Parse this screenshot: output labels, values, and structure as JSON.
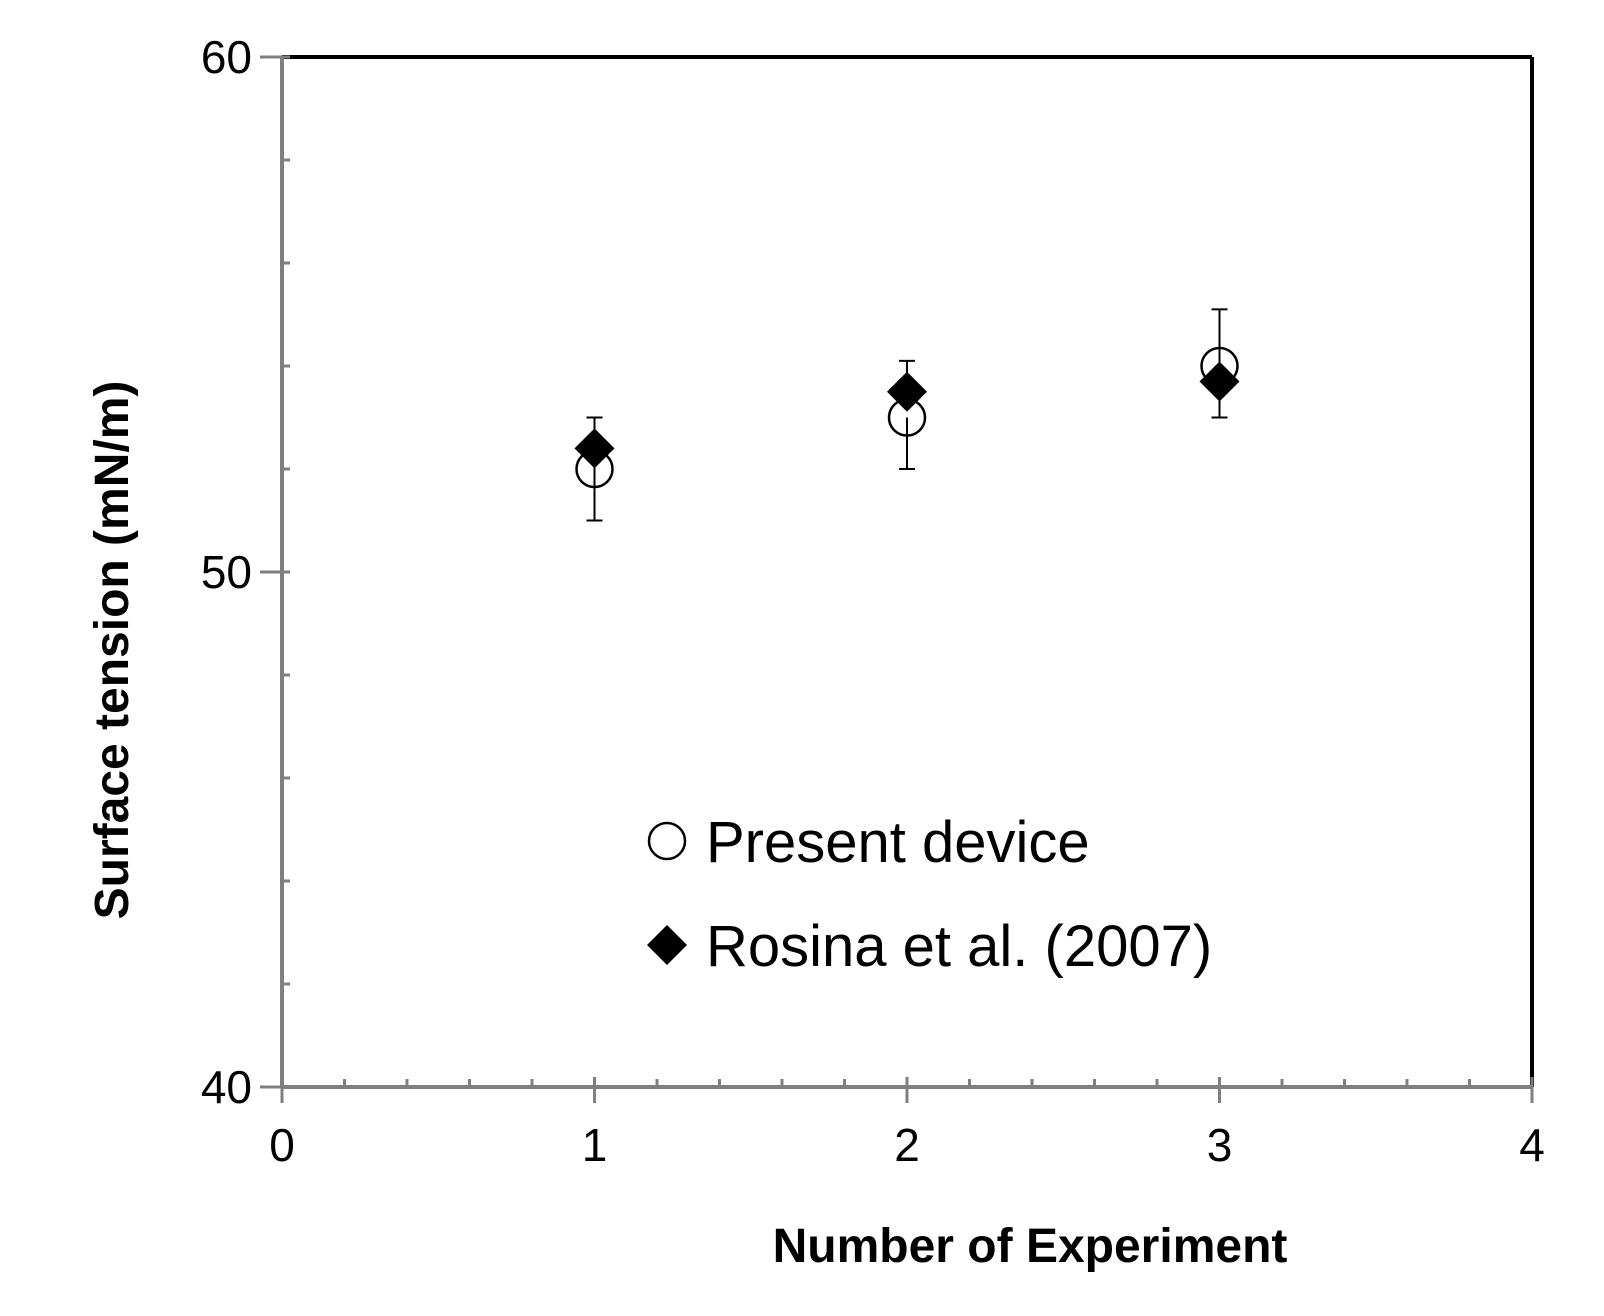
{
  "chart_data": {
    "type": "scatter",
    "title": "",
    "xlabel": "Number of Experiment",
    "ylabel": "Surface tension (mN/m)",
    "xlim": [
      0,
      4
    ],
    "ylim": [
      40,
      60
    ],
    "x_ticks": [
      0,
      1,
      2,
      3,
      4
    ],
    "y_ticks": [
      40,
      50,
      60
    ],
    "x_tick_labels": [
      "0",
      "1",
      "2",
      "3",
      "4"
    ],
    "y_tick_labels": [
      "40",
      "50",
      "60"
    ],
    "x_minor_step": 0.2,
    "y_minor_step": 2,
    "grid": false,
    "legend_position": "lower-center",
    "series": [
      {
        "name": "Present device",
        "marker": "open-circle",
        "x": [
          1,
          2,
          3
        ],
        "y": [
          52.0,
          53.0,
          54.0
        ],
        "err_low": [
          51.0,
          52.0,
          null
        ],
        "err_high": [
          53.0,
          null,
          55.1
        ]
      },
      {
        "name": "Rosina et al. (2007)",
        "marker": "filled-diamond",
        "x": [
          1,
          2,
          3
        ],
        "y": [
          52.4,
          53.5,
          53.7
        ],
        "err_low": [
          null,
          null,
          53.0
        ],
        "err_high": [
          53.0,
          54.1,
          null
        ]
      }
    ]
  },
  "colors": {
    "axis": "#7f7f7f",
    "frame": "#000000",
    "marker": "#000000"
  }
}
